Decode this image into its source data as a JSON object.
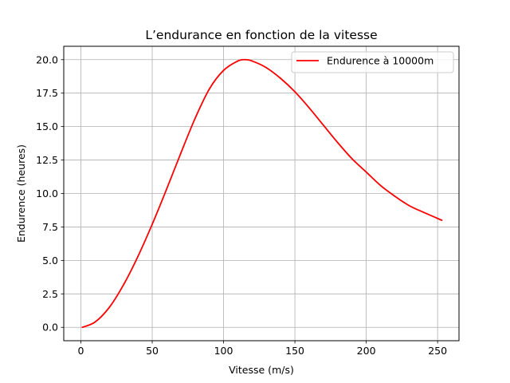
{
  "chart_data": {
    "type": "line",
    "title": "L’endurance en fonction de la vitesse",
    "xlabel": "Vitesse (m/s)",
    "ylabel": "Endurence (heures)",
    "xlim": [
      -12,
      265
    ],
    "ylim": [
      -1,
      21
    ],
    "xticks": [
      0,
      50,
      100,
      150,
      200,
      250
    ],
    "xtick_labels": [
      "0",
      "50",
      "100",
      "150",
      "200",
      "250"
    ],
    "yticks": [
      0,
      2.5,
      5,
      7.5,
      10,
      12.5,
      15,
      17.5,
      20
    ],
    "ytick_labels": [
      "0.0",
      "2.5",
      "5.0",
      "7.5",
      "10.0",
      "12.5",
      "15.0",
      "17.5",
      "20.0"
    ],
    "grid": true,
    "legend": {
      "position": "top-right"
    },
    "series": [
      {
        "name": "Endurence à 10000m",
        "color": "#ff0000",
        "x": [
          1,
          10,
          20,
          30,
          40,
          50,
          60,
          70,
          80,
          90,
          100,
          110,
          115,
          120,
          130,
          140,
          150,
          160,
          170,
          180,
          190,
          200,
          210,
          220,
          230,
          240,
          253
        ],
        "y": [
          0,
          0.4,
          1.5,
          3.2,
          5.3,
          7.7,
          10.3,
          13.0,
          15.6,
          17.8,
          19.2,
          19.9,
          20.0,
          19.9,
          19.4,
          18.6,
          17.6,
          16.4,
          15.1,
          13.8,
          12.6,
          11.6,
          10.6,
          9.8,
          9.1,
          8.6,
          8.0
        ]
      }
    ]
  }
}
